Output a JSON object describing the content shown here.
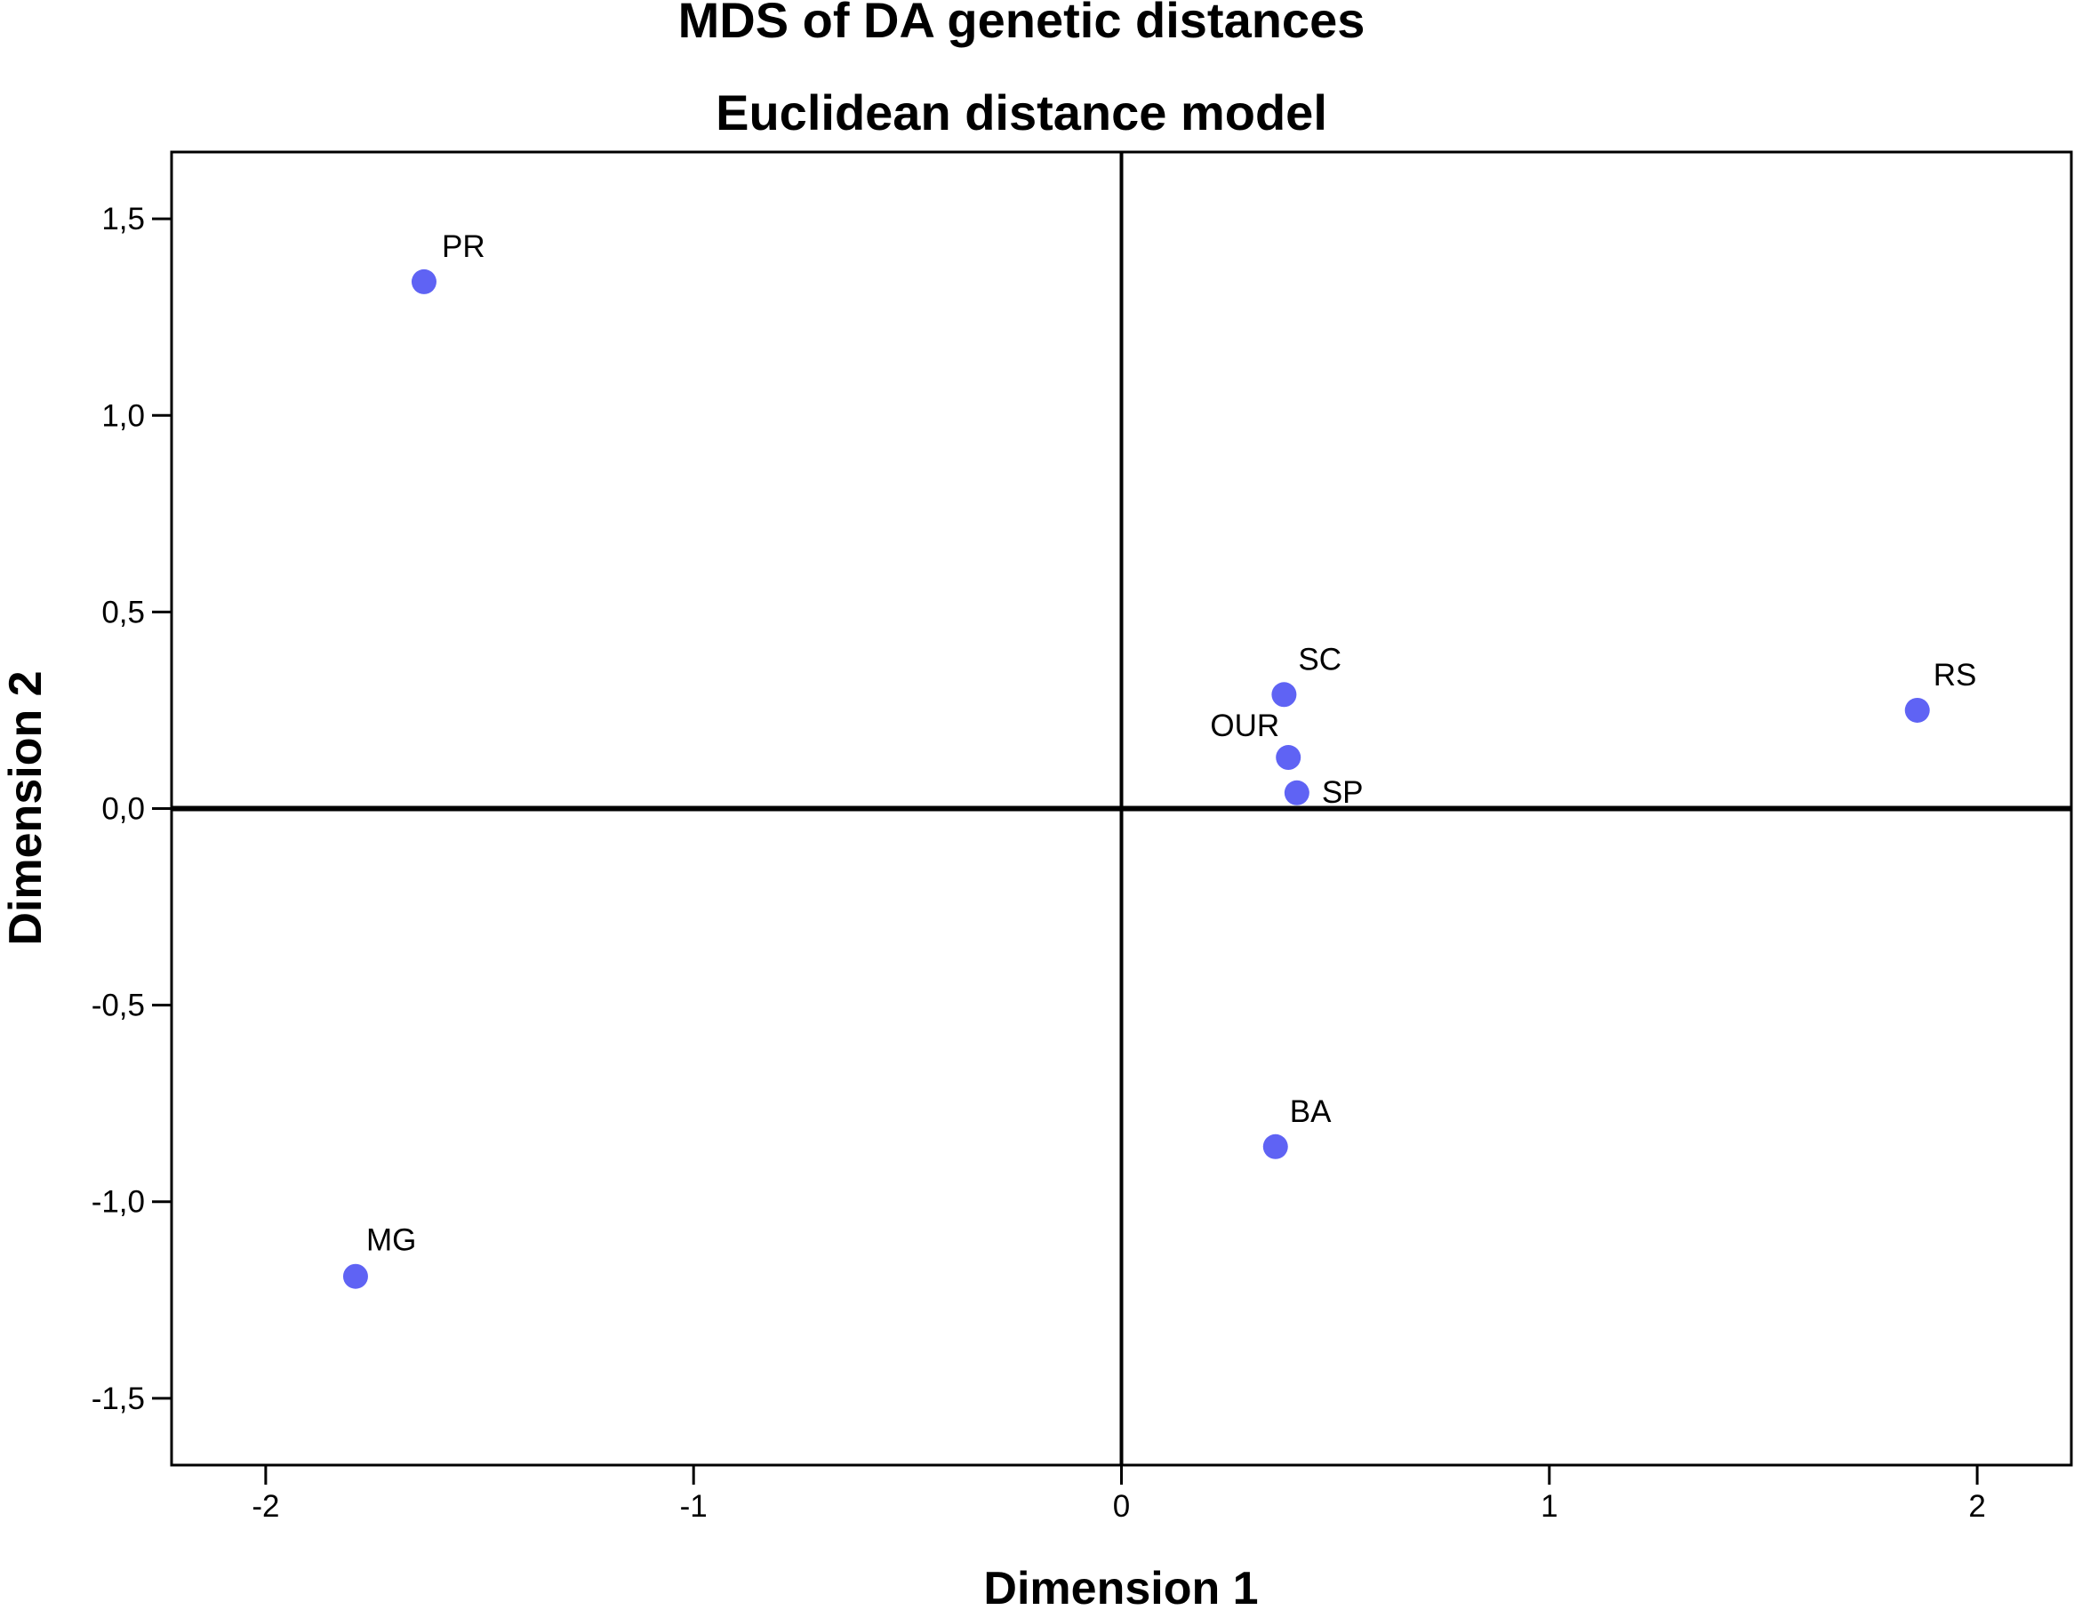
{
  "chart_data": {
    "type": "scatter",
    "title": "MDS of DA genetic distances",
    "subtitle": "Euclidean distance model",
    "xlabel": "Dimension 1",
    "ylabel": "Dimension 2",
    "xlim": [
      -2.22,
      2.22
    ],
    "ylim": [
      -1.67,
      1.67
    ],
    "x_ticks": [
      -2,
      -1,
      0,
      1,
      2
    ],
    "x_tick_labels": [
      "-2",
      "-1",
      "0",
      "1",
      "2"
    ],
    "y_ticks": [
      -1.5,
      -1.0,
      -0.5,
      0.0,
      0.5,
      1.0,
      1.5
    ],
    "y_tick_labels": [
      "-1,5",
      "-1,0",
      "-0,5",
      "0,0",
      "0,5",
      "1,0",
      "1,5"
    ],
    "reference_lines": {
      "x": 0,
      "y": 0
    },
    "grid": false,
    "legend": "none",
    "marker_color": "#5f63f4",
    "points": [
      {
        "label": "PR",
        "x": -1.63,
        "y": 1.34
      },
      {
        "label": "SC",
        "x": 0.38,
        "y": 0.29
      },
      {
        "label": "RS",
        "x": 1.86,
        "y": 0.25
      },
      {
        "label": "OUR",
        "x": 0.39,
        "y": 0.13
      },
      {
        "label": "SP",
        "x": 0.41,
        "y": 0.04
      },
      {
        "label": "BA",
        "x": 0.36,
        "y": -0.86
      },
      {
        "label": "MG",
        "x": -1.79,
        "y": -1.19
      }
    ]
  }
}
